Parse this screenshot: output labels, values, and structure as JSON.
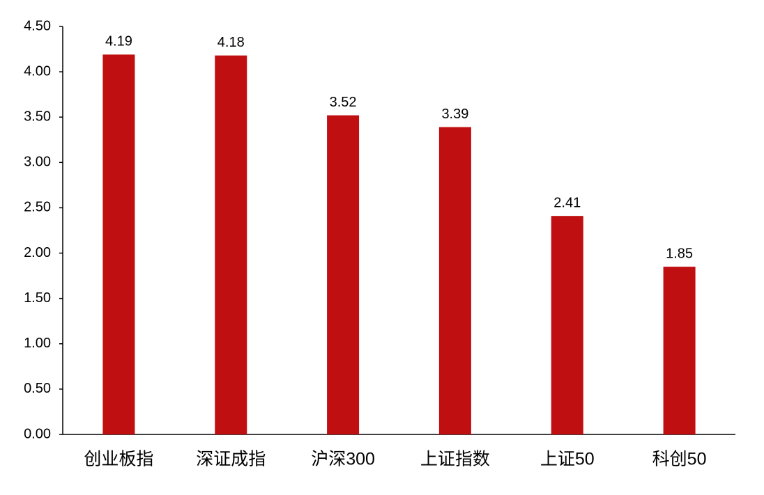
{
  "chart_data": {
    "type": "bar",
    "categories": [
      "创业板指",
      "深证成指",
      "沪深300",
      "上证指数",
      "上证50",
      "科创50"
    ],
    "values": [
      4.19,
      4.18,
      3.52,
      3.39,
      2.41,
      1.85
    ],
    "color": "#c00f10",
    "ylim": [
      0,
      4.5
    ],
    "yticks": [
      {
        "value": 0,
        "label": "0.00"
      },
      {
        "value": 0.5,
        "label": "0.50"
      },
      {
        "value": 1,
        "label": "1.00"
      },
      {
        "value": 1.5,
        "label": "1.50"
      },
      {
        "value": 2,
        "label": "2.00"
      },
      {
        "value": 2.5,
        "label": "2.50"
      },
      {
        "value": 3,
        "label": "3.00"
      },
      {
        "value": 3.5,
        "label": "3.50"
      },
      {
        "value": 4,
        "label": "4.00"
      },
      {
        "value": 4.5,
        "label": "4.50"
      }
    ],
    "grid": false
  }
}
